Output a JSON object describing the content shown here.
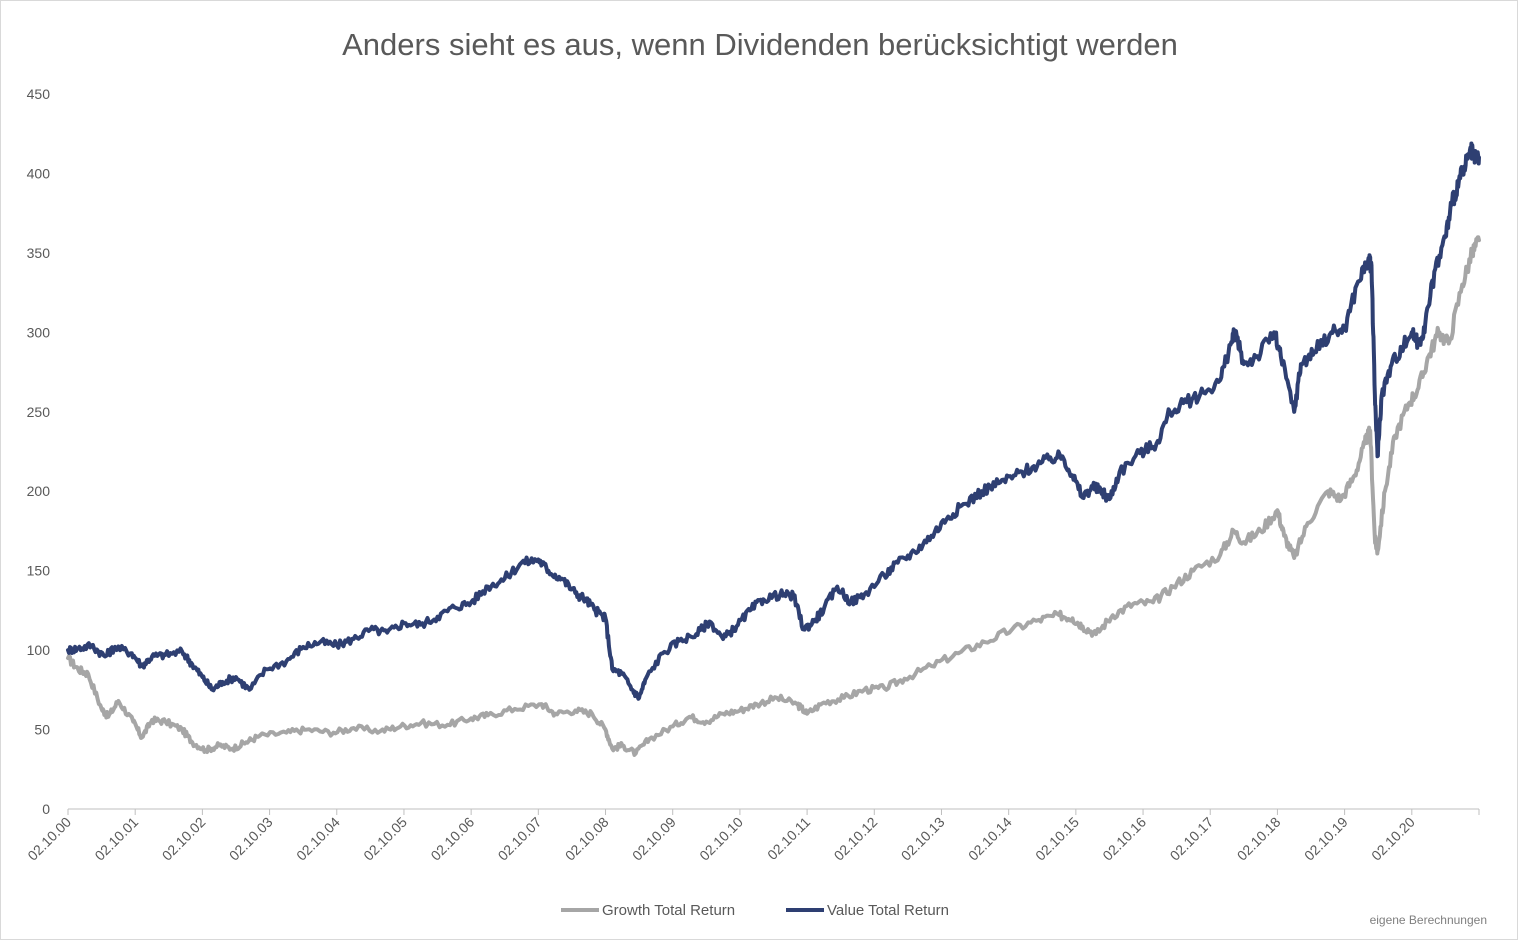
{
  "chart_data": {
    "type": "line",
    "title": "Anders sieht es aus, wenn Dividenden berücksichtigt werden",
    "source_note": "eigene Berechnungen",
    "xlabel": "",
    "ylabel": "",
    "ylim": [
      0,
      450
    ],
    "yticks": [
      "0",
      "50",
      "100",
      "150",
      "200",
      "250",
      "300",
      "350",
      "400",
      "450"
    ],
    "xticks": [
      "02.10.00",
      "02.10.01",
      "02.10.02",
      "02.10.03",
      "02.10.04",
      "02.10.05",
      "02.10.06",
      "02.10.07",
      "02.10.08",
      "02.10.09",
      "02.10.10",
      "02.10.11",
      "02.10.12",
      "02.10.13",
      "02.10.14",
      "02.10.15",
      "02.10.16",
      "02.10.17",
      "02.10.18",
      "02.10.19",
      "02.10.20"
    ],
    "xlim_years": [
      2000.75,
      2021.75
    ],
    "grid": false,
    "legend_position": "bottom",
    "series": [
      {
        "name": "Growth Total Return",
        "color": "#a6a6a6",
        "points": [
          [
            2000.75,
            95
          ],
          [
            2000.9,
            88
          ],
          [
            2001.05,
            85
          ],
          [
            2001.25,
            63
          ],
          [
            2001.35,
            58
          ],
          [
            2001.5,
            68
          ],
          [
            2001.72,
            55
          ],
          [
            2001.85,
            45
          ],
          [
            2002.0,
            56
          ],
          [
            2002.2,
            55
          ],
          [
            2002.45,
            50
          ],
          [
            2002.6,
            42
          ],
          [
            2002.8,
            37
          ],
          [
            2003.0,
            40
          ],
          [
            2003.2,
            38
          ],
          [
            2003.4,
            42
          ],
          [
            2003.6,
            46
          ],
          [
            2004.0,
            48
          ],
          [
            2004.3,
            50
          ],
          [
            2004.7,
            48
          ],
          [
            2005.0,
            51
          ],
          [
            2005.4,
            49
          ],
          [
            2005.7,
            52
          ],
          [
            2006.0,
            54
          ],
          [
            2006.4,
            53
          ],
          [
            2006.75,
            57
          ],
          [
            2007.0,
            59
          ],
          [
            2007.4,
            63
          ],
          [
            2007.8,
            66
          ],
          [
            2008.0,
            60
          ],
          [
            2008.3,
            62
          ],
          [
            2008.55,
            60
          ],
          [
            2008.75,
            50
          ],
          [
            2008.85,
            38
          ],
          [
            2009.0,
            40
          ],
          [
            2009.2,
            35
          ],
          [
            2009.4,
            44
          ],
          [
            2009.75,
            52
          ],
          [
            2010.0,
            58
          ],
          [
            2010.25,
            55
          ],
          [
            2010.5,
            60
          ],
          [
            2010.75,
            62
          ],
          [
            2011.0,
            66
          ],
          [
            2011.3,
            70
          ],
          [
            2011.6,
            66
          ],
          [
            2011.75,
            60
          ],
          [
            2012.0,
            67
          ],
          [
            2012.3,
            70
          ],
          [
            2012.6,
            75
          ],
          [
            2012.9,
            76
          ],
          [
            2013.2,
            82
          ],
          [
            2013.6,
            90
          ],
          [
            2014.0,
            98
          ],
          [
            2014.4,
            105
          ],
          [
            2014.8,
            113
          ],
          [
            2015.2,
            119
          ],
          [
            2015.5,
            122
          ],
          [
            2015.7,
            120
          ],
          [
            2015.85,
            115
          ],
          [
            2016.05,
            110
          ],
          [
            2016.3,
            122
          ],
          [
            2016.6,
            129
          ],
          [
            2016.9,
            130
          ],
          [
            2017.2,
            140
          ],
          [
            2017.5,
            150
          ],
          [
            2017.9,
            160
          ],
          [
            2018.1,
            175
          ],
          [
            2018.25,
            168
          ],
          [
            2018.5,
            175
          ],
          [
            2018.75,
            188
          ],
          [
            2018.85,
            172
          ],
          [
            2019.0,
            158
          ],
          [
            2019.2,
            180
          ],
          [
            2019.5,
            200
          ],
          [
            2019.7,
            195
          ],
          [
            2019.9,
            210
          ],
          [
            2020.05,
            230
          ],
          [
            2020.13,
            238
          ],
          [
            2020.2,
            170
          ],
          [
            2020.24,
            162
          ],
          [
            2020.35,
            200
          ],
          [
            2020.5,
            235
          ],
          [
            2020.7,
            255
          ],
          [
            2020.85,
            265
          ],
          [
            2021.0,
            285
          ],
          [
            2021.15,
            300
          ],
          [
            2021.3,
            293
          ],
          [
            2021.5,
            330
          ],
          [
            2021.65,
            350
          ],
          [
            2021.75,
            358
          ]
        ]
      },
      {
        "name": "Value Total Return",
        "color": "#2e3f72",
        "points": [
          [
            2000.75,
            100
          ],
          [
            2000.9,
            101
          ],
          [
            2001.1,
            103
          ],
          [
            2001.3,
            96
          ],
          [
            2001.45,
            102
          ],
          [
            2001.7,
            98
          ],
          [
            2001.85,
            90
          ],
          [
            2002.0,
            96
          ],
          [
            2002.2,
            97
          ],
          [
            2002.45,
            99
          ],
          [
            2002.6,
            91
          ],
          [
            2002.75,
            83
          ],
          [
            2002.9,
            75
          ],
          [
            2003.05,
            80
          ],
          [
            2003.25,
            83
          ],
          [
            2003.45,
            75
          ],
          [
            2003.7,
            88
          ],
          [
            2004.0,
            93
          ],
          [
            2004.25,
            102
          ],
          [
            2004.5,
            105
          ],
          [
            2004.75,
            103
          ],
          [
            2005.0,
            107
          ],
          [
            2005.25,
            113
          ],
          [
            2005.5,
            111
          ],
          [
            2005.75,
            117
          ],
          [
            2006.0,
            116
          ],
          [
            2006.25,
            121
          ],
          [
            2006.5,
            127
          ],
          [
            2006.75,
            130
          ],
          [
            2007.0,
            140
          ],
          [
            2007.25,
            145
          ],
          [
            2007.5,
            155
          ],
          [
            2007.75,
            157
          ],
          [
            2007.9,
            150
          ],
          [
            2008.1,
            145
          ],
          [
            2008.3,
            136
          ],
          [
            2008.45,
            132
          ],
          [
            2008.6,
            125
          ],
          [
            2008.75,
            120
          ],
          [
            2008.85,
            88
          ],
          [
            2009.0,
            85
          ],
          [
            2009.15,
            75
          ],
          [
            2009.25,
            70
          ],
          [
            2009.35,
            82
          ],
          [
            2009.6,
            98
          ],
          [
            2009.85,
            106
          ],
          [
            2010.1,
            110
          ],
          [
            2010.3,
            118
          ],
          [
            2010.5,
            107
          ],
          [
            2010.7,
            115
          ],
          [
            2010.9,
            125
          ],
          [
            2011.1,
            132
          ],
          [
            2011.35,
            135
          ],
          [
            2011.55,
            134
          ],
          [
            2011.7,
            113
          ],
          [
            2011.85,
            118
          ],
          [
            2012.0,
            126
          ],
          [
            2012.2,
            140
          ],
          [
            2012.4,
            130
          ],
          [
            2012.6,
            135
          ],
          [
            2012.9,
            147
          ],
          [
            2013.1,
            155
          ],
          [
            2013.35,
            162
          ],
          [
            2013.6,
            172
          ],
          [
            2013.85,
            184
          ],
          [
            2014.1,
            192
          ],
          [
            2014.35,
            200
          ],
          [
            2014.6,
            205
          ],
          [
            2014.85,
            210
          ],
          [
            2015.1,
            215
          ],
          [
            2015.35,
            220
          ],
          [
            2015.55,
            222
          ],
          [
            2015.7,
            210
          ],
          [
            2015.85,
            196
          ],
          [
            2016.0,
            203
          ],
          [
            2016.15,
            199
          ],
          [
            2016.25,
            195
          ],
          [
            2016.4,
            212
          ],
          [
            2016.7,
            224
          ],
          [
            2016.95,
            230
          ],
          [
            2017.15,
            250
          ],
          [
            2017.4,
            256
          ],
          [
            2017.65,
            262
          ],
          [
            2017.9,
            270
          ],
          [
            2018.05,
            292
          ],
          [
            2018.12,
            300
          ],
          [
            2018.25,
            280
          ],
          [
            2018.45,
            285
          ],
          [
            2018.7,
            300
          ],
          [
            2018.8,
            285
          ],
          [
            2019.0,
            250
          ],
          [
            2019.1,
            280
          ],
          [
            2019.3,
            288
          ],
          [
            2019.55,
            300
          ],
          [
            2019.75,
            302
          ],
          [
            2019.95,
            332
          ],
          [
            2020.1,
            345
          ],
          [
            2020.15,
            342
          ],
          [
            2020.2,
            260
          ],
          [
            2020.24,
            222
          ],
          [
            2020.3,
            260
          ],
          [
            2020.45,
            280
          ],
          [
            2020.6,
            290
          ],
          [
            2020.75,
            300
          ],
          [
            2020.85,
            292
          ],
          [
            2020.95,
            305
          ],
          [
            2021.1,
            340
          ],
          [
            2021.25,
            360
          ],
          [
            2021.35,
            382
          ],
          [
            2021.45,
            395
          ],
          [
            2021.55,
            405
          ],
          [
            2021.63,
            414
          ],
          [
            2021.7,
            408
          ],
          [
            2021.75,
            410
          ]
        ]
      }
    ]
  }
}
